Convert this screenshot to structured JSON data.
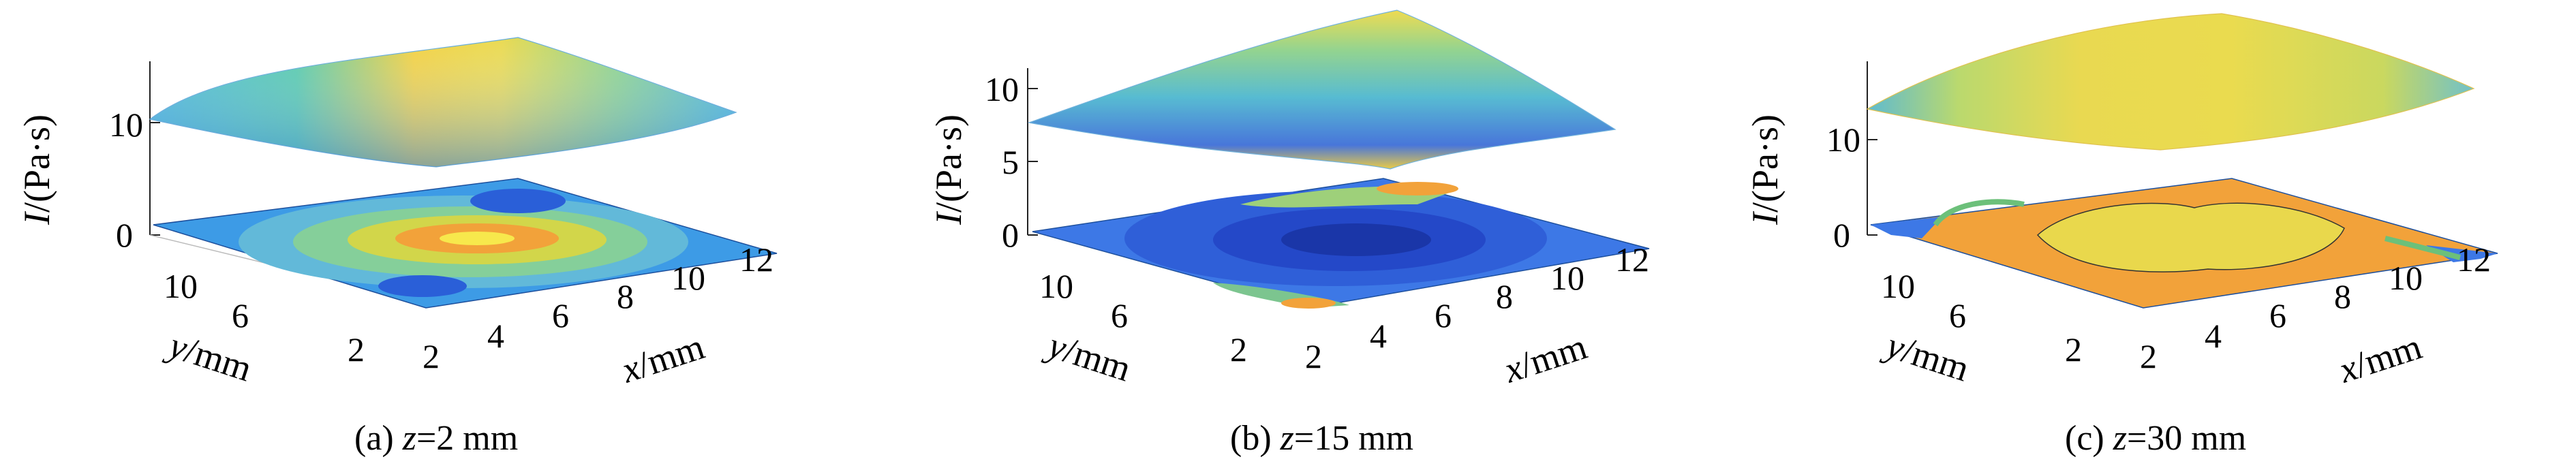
{
  "chart_data": [
    {
      "type": "surface3d",
      "caption_prefix": "(a) ",
      "caption_var": "z",
      "caption_value": "=2 mm",
      "zlabel_var": "I",
      "zlabel_unit": "/(Pa·s)",
      "xlabel_var": "x",
      "xlabel_unit": "/mm",
      "ylabel_var": "y",
      "ylabel_unit": "/mm",
      "xticks": [
        "2",
        "4",
        "6",
        "8",
        "10",
        "12"
      ],
      "yticks": [
        "2",
        "6",
        "10"
      ],
      "zticks": [
        "0",
        "10"
      ],
      "surface_peak_at": "center",
      "surface_range": [
        11,
        16
      ]
    },
    {
      "type": "surface3d",
      "caption_prefix": "(b) ",
      "caption_var": "z",
      "caption_value": "=15 mm",
      "zlabel_var": "I",
      "zlabel_unit": "/(Pa·s)",
      "xlabel_var": "x",
      "xlabel_unit": "/mm",
      "ylabel_var": "y",
      "ylabel_unit": "/mm",
      "xticks": [
        "2",
        "4",
        "6",
        "8",
        "10",
        "12"
      ],
      "yticks": [
        "2",
        "6",
        "10"
      ],
      "zticks": [
        "0",
        "5",
        "10"
      ],
      "surface_peak_at": "corner",
      "surface_range": [
        7,
        12
      ]
    },
    {
      "type": "surface3d",
      "caption_prefix": "(c) ",
      "caption_var": "z",
      "caption_value": "=30 mm",
      "zlabel_var": "I",
      "zlabel_unit": "/(Pa·s)",
      "xlabel_var": "x",
      "xlabel_unit": "/mm",
      "ylabel_var": "y",
      "ylabel_unit": "/mm",
      "xticks": [
        "2",
        "4",
        "6",
        "8",
        "10",
        "12"
      ],
      "yticks": [
        "2",
        "6",
        "10"
      ],
      "zticks": [
        "0",
        "10"
      ],
      "surface_peak_at": "plateau",
      "surface_range": [
        13,
        19
      ]
    }
  ]
}
